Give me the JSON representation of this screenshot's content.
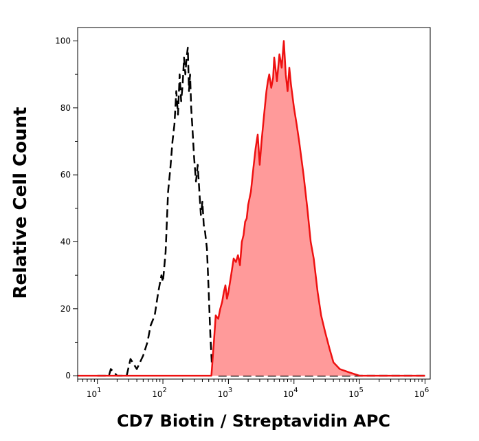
{
  "chart_data": {
    "type": "area",
    "xlabel": "CD7 Biotin / Streptavidin APC",
    "ylabel": "Relative Cell Count",
    "x_scale": "log",
    "xlim": [
      5,
      1200000
    ],
    "ylim": [
      -1,
      104
    ],
    "x_ticks": [
      {
        "base": "10",
        "exp": "1"
      },
      {
        "base": "10",
        "exp": "2"
      },
      {
        "base": "10",
        "exp": "3"
      },
      {
        "base": "10",
        "exp": "4"
      },
      {
        "base": "10",
        "exp": "5"
      },
      {
        "base": "10",
        "exp": "6"
      }
    ],
    "y_ticks": [
      "0",
      "20",
      "40",
      "60",
      "80",
      "100"
    ],
    "series": [
      {
        "style": "dashed",
        "color": "#000000",
        "x": [
          10,
          15,
          16,
          20,
          28,
          32,
          40,
          50,
          58,
          65,
          75,
          85,
          95,
          100,
          110,
          120,
          130,
          140,
          150,
          155,
          160,
          170,
          180,
          190,
          200,
          210,
          220,
          230,
          240,
          250,
          260,
          270,
          280,
          290,
          300,
          320,
          340,
          360,
          380,
          400,
          420,
          440,
          470,
          500,
          530,
          560,
          600,
          650,
          700,
          800,
          1000,
          2000,
          5000,
          10000,
          50000,
          1000000
        ],
        "y": [
          0,
          0,
          2,
          0,
          0,
          5,
          2,
          6,
          10,
          15,
          18,
          25,
          30,
          28,
          37,
          55,
          62,
          70,
          75,
          80,
          85,
          78,
          90,
          82,
          87,
          95,
          90,
          95,
          98,
          85,
          90,
          80,
          75,
          70,
          65,
          58,
          63,
          55,
          48,
          52,
          45,
          43,
          38,
          25,
          12,
          3,
          1,
          0,
          0,
          0,
          0,
          0,
          0,
          0,
          0,
          0
        ]
      },
      {
        "style": "filled",
        "color": "#ee1111",
        "fill": "#ff9a9a",
        "x": [
          5,
          400,
          550,
          600,
          640,
          700,
          750,
          800,
          850,
          900,
          950,
          1000,
          1100,
          1200,
          1300,
          1400,
          1500,
          1600,
          1700,
          1800,
          1900,
          2000,
          2200,
          2400,
          2600,
          2800,
          3000,
          3200,
          3500,
          3800,
          4000,
          4200,
          4500,
          4800,
          5000,
          5500,
          6000,
          6500,
          7000,
          7500,
          8000,
          8500,
          9000,
          10000,
          11000,
          12000,
          14000,
          16000,
          18000,
          20000,
          23000,
          26000,
          30000,
          35000,
          40000,
          50000,
          70000,
          100000,
          1000000
        ],
        "y": [
          0,
          0,
          0,
          10,
          18,
          17,
          20,
          22,
          25,
          27,
          23,
          25,
          30,
          35,
          34,
          36,
          33,
          40,
          42,
          46,
          47,
          51,
          55,
          62,
          68,
          72,
          63,
          70,
          78,
          85,
          88,
          90,
          86,
          89,
          95,
          88,
          96,
          92,
          100,
          90,
          85,
          92,
          87,
          80,
          75,
          70,
          60,
          50,
          40,
          35,
          25,
          18,
          13,
          8,
          4,
          2,
          1,
          0,
          0
        ]
      }
    ]
  }
}
